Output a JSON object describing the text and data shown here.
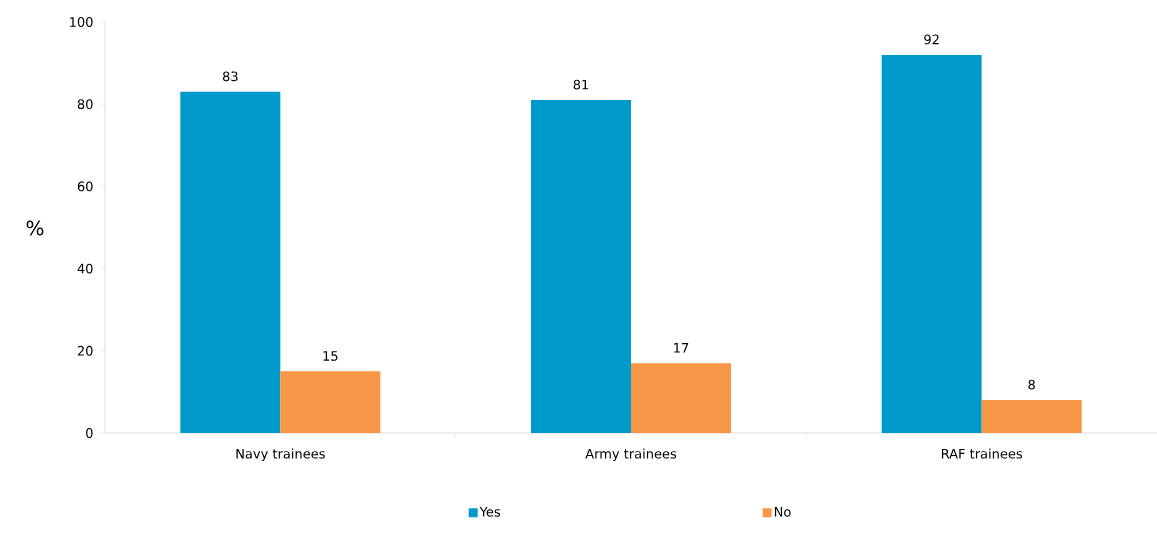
{
  "chart_data": {
    "type": "bar",
    "ylabel": "%",
    "categories": [
      "Navy trainees",
      "Army trainees",
      "RAF trainees"
    ],
    "series": [
      {
        "name": "Yes",
        "color": "#0099cc",
        "values": [
          83,
          81,
          92
        ]
      },
      {
        "name": "No",
        "color": "#f79646",
        "values": [
          15,
          17,
          8
        ]
      }
    ],
    "ylim": [
      0,
      100
    ],
    "yticks": [
      0,
      20,
      40,
      60,
      80,
      100
    ],
    "data_labels": true,
    "grid": false,
    "legend": "bottom"
  }
}
